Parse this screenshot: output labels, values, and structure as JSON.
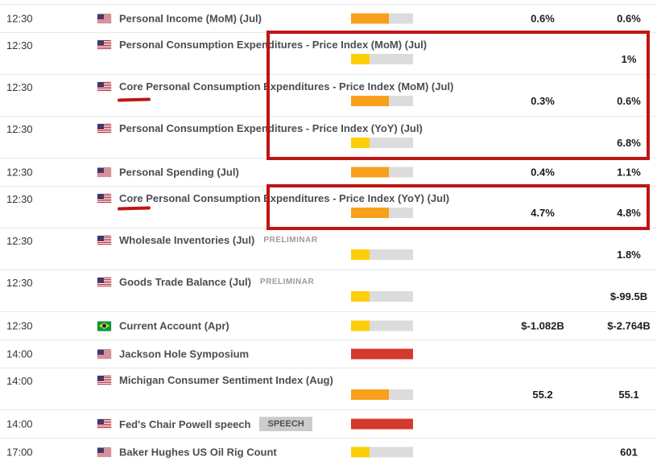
{
  "colors": {
    "importance_low": "#fccf0b",
    "importance_medium": "#f8a01c",
    "importance_high": "#d5382c",
    "bar_track": "#dcdcdc",
    "annotation_red": "#c01414",
    "flag_us_red": "#b22234",
    "flag_us_blue": "#3c3b6e",
    "flag_br_green": "#009b3a",
    "flag_br_yellow": "#fedf00",
    "flag_br_blue": "#002776"
  },
  "table": {
    "rows": [
      {
        "time": "12:30",
        "country": "us",
        "title": "Personal Income (MoM) (Jul)",
        "tag": "",
        "tag_style": "",
        "importance": "medium",
        "actual": "0.6%",
        "previous": "0.6%",
        "layout": "single",
        "core_underline": false
      },
      {
        "time": "12:30",
        "country": "us",
        "title": "Personal Consumption Expenditures - Price Index (MoM) (Jul)",
        "tag": "",
        "tag_style": "",
        "importance": "low",
        "actual": "",
        "previous": "1%",
        "layout": "double",
        "core_underline": false
      },
      {
        "time": "12:30",
        "country": "us",
        "title": "Core Personal Consumption Expenditures - Price Index (MoM) (Jul)",
        "tag": "",
        "tag_style": "",
        "importance": "medium",
        "actual": "0.3%",
        "previous": "0.6%",
        "layout": "double",
        "core_underline": true
      },
      {
        "time": "12:30",
        "country": "us",
        "title": "Personal Consumption Expenditures - Price Index (YoY) (Jul)",
        "tag": "",
        "tag_style": "",
        "importance": "low",
        "actual": "",
        "previous": "6.8%",
        "layout": "double",
        "core_underline": false
      },
      {
        "time": "12:30",
        "country": "us",
        "title": "Personal Spending (Jul)",
        "tag": "",
        "tag_style": "",
        "importance": "medium",
        "actual": "0.4%",
        "previous": "1.1%",
        "layout": "single",
        "core_underline": false
      },
      {
        "time": "12:30",
        "country": "us",
        "title": "Core Personal Consumption Expenditures - Price Index (YoY) (Jul)",
        "tag": "",
        "tag_style": "",
        "importance": "medium",
        "actual": "4.7%",
        "previous": "4.8%",
        "layout": "double",
        "core_underline": true
      },
      {
        "time": "12:30",
        "country": "us",
        "title": "Wholesale Inventories (Jul)",
        "tag": "PRELIMINAR",
        "tag_style": "plain",
        "importance": "low",
        "actual": "",
        "previous": "1.8%",
        "layout": "double",
        "core_underline": false
      },
      {
        "time": "12:30",
        "country": "us",
        "title": "Goods Trade Balance (Jul)",
        "tag": "PRELIMINAR",
        "tag_style": "plain",
        "importance": "low",
        "actual": "",
        "previous": "$-99.5B",
        "layout": "double",
        "core_underline": false
      },
      {
        "time": "12:30",
        "country": "br",
        "title": "Current Account (Apr)",
        "tag": "",
        "tag_style": "",
        "importance": "low",
        "actual": "$-1.082B",
        "previous": "$-2.764B",
        "layout": "single",
        "core_underline": false
      },
      {
        "time": "14:00",
        "country": "us",
        "title": "Jackson Hole Symposium",
        "tag": "",
        "tag_style": "",
        "importance": "high",
        "actual": "",
        "previous": "",
        "layout": "single",
        "core_underline": false
      },
      {
        "time": "14:00",
        "country": "us",
        "title": "Michigan Consumer Sentiment Index (Aug)",
        "tag": "",
        "tag_style": "",
        "importance": "medium",
        "actual": "55.2",
        "previous": "55.1",
        "layout": "double",
        "core_underline": false
      },
      {
        "time": "14:00",
        "country": "us",
        "title": "Fed's Chair Powell speech",
        "tag": "SPEECH",
        "tag_style": "badge",
        "importance": "high",
        "actual": "",
        "previous": "",
        "layout": "single",
        "core_underline": false
      },
      {
        "time": "17:00",
        "country": "us",
        "title": "Baker Hughes US Oil Rig Count",
        "tag": "",
        "tag_style": "",
        "importance": "low",
        "actual": "",
        "previous": "601",
        "layout": "single",
        "core_underline": false
      }
    ]
  },
  "annotations": {
    "boxes": [
      {
        "id": "anno-box-1",
        "highlights": "Personal Consumption Expenditures - Price Index rows (MoM, Core MoM, YoY)"
      },
      {
        "id": "anno-box-2",
        "highlights": "Core Personal Consumption Expenditures - Price Index (YoY) (Jul) row"
      }
    ],
    "underlined_word": "Core"
  }
}
